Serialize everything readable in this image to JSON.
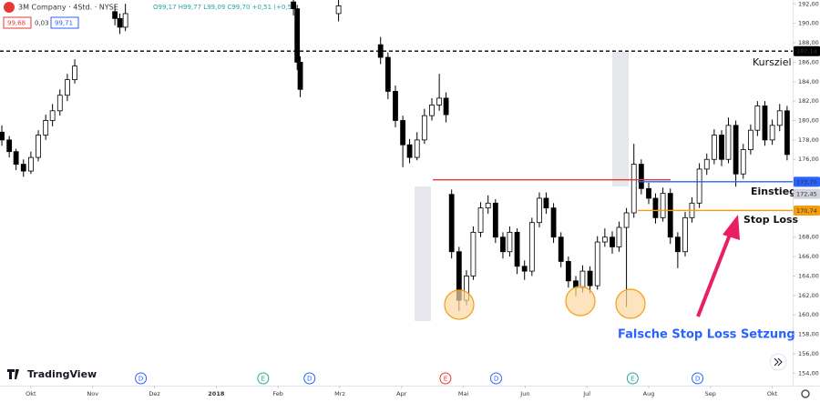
{
  "header": {
    "symbol": "3M Company · 4Std. · NYSE",
    "ohlc": "O99,17 H99,77 L99,09 C99,70 +0,51 (+0,5",
    "boxes": [
      "99,68",
      "0,03",
      "99,71"
    ]
  },
  "chart_data": {
    "type": "candlestick",
    "xlim": [
      -0.5,
      12.33
    ],
    "xticks": [
      {
        "value": 0,
        "label": "Okt"
      },
      {
        "value": 1,
        "label": "Nov"
      },
      {
        "value": 2,
        "label": "Dez"
      },
      {
        "value": 3,
        "label": "2018"
      },
      {
        "value": 4,
        "label": "Feb"
      },
      {
        "value": 5,
        "label": "Mrz"
      },
      {
        "value": 6,
        "label": "Apr"
      },
      {
        "value": 7,
        "label": "Mai"
      },
      {
        "value": 8,
        "label": "Jun"
      },
      {
        "value": 9,
        "label": "Jul"
      },
      {
        "value": 10,
        "label": "Aug"
      },
      {
        "value": 11,
        "label": "Sep"
      },
      {
        "value": 12,
        "label": "Okt"
      }
    ],
    "ylim": [
      153,
      192.4
    ],
    "yticks": [
      {
        "value": 154,
        "label": "154,00"
      },
      {
        "value": 156,
        "label": "156,00"
      },
      {
        "value": 158,
        "label": "158,00"
      },
      {
        "value": 160,
        "label": "160,00"
      },
      {
        "value": 162,
        "label": "162,00"
      },
      {
        "value": 164,
        "label": "164,00"
      },
      {
        "value": 166,
        "label": "166,00"
      },
      {
        "value": 168,
        "label": "168,00"
      },
      {
        "value": 176,
        "label": "176,00"
      },
      {
        "value": 178,
        "label": "178,00"
      },
      {
        "value": 180,
        "label": "180,00"
      },
      {
        "value": 182,
        "label": "182,00"
      },
      {
        "value": 184,
        "label": "184,00"
      },
      {
        "value": 186,
        "label": "186,00"
      },
      {
        "value": 188,
        "label": "188,00"
      },
      {
        "value": 190,
        "label": "190,00"
      },
      {
        "value": 192,
        "label": "192,00"
      }
    ],
    "up_color": "#ffffff",
    "down_color": "#000000",
    "candles": [
      [
        -0.47,
        178.8,
        179.5,
        177.4,
        178.0
      ],
      [
        -0.35,
        178.0,
        178.4,
        176.2,
        176.8
      ],
      [
        -0.24,
        176.8,
        177.1,
        174.9,
        175.5
      ],
      [
        -0.12,
        175.5,
        176.0,
        174.2,
        174.8
      ],
      [
        0,
        174.8,
        176.8,
        174.5,
        176.2
      ],
      [
        0.12,
        176.2,
        179.0,
        175.8,
        178.5
      ],
      [
        0.24,
        178.5,
        180.6,
        178.0,
        180.0
      ],
      [
        0.35,
        180.0,
        181.7,
        179.4,
        181.0
      ],
      [
        0.47,
        181.0,
        183.2,
        180.5,
        182.6
      ],
      [
        0.59,
        182.6,
        184.8,
        182.0,
        184.2
      ],
      [
        0.71,
        184.2,
        186.3,
        183.8,
        185.6
      ],
      [
        1.36,
        191.2,
        191.9,
        189.8,
        190.5
      ],
      [
        1.44,
        190.5,
        191.0,
        188.9,
        189.6
      ],
      [
        1.53,
        189.6,
        192.0,
        189.2,
        191.0
      ],
      [
        4.25,
        192.2,
        192.4,
        190.8,
        191.5
      ],
      [
        4.31,
        191.5,
        191.9,
        185.2,
        186.0
      ],
      [
        4.36,
        186.0,
        186.6,
        182.4,
        183.2
      ],
      [
        4.98,
        191.0,
        192.4,
        190.2,
        191.8
      ],
      [
        5.66,
        187.8,
        188.6,
        185.8,
        186.5
      ],
      [
        5.78,
        186.5,
        187.0,
        182.2,
        183.0
      ],
      [
        5.9,
        183.0,
        183.6,
        179.3,
        180.0
      ],
      [
        6.02,
        180.0,
        180.5,
        175.2,
        177.5
      ],
      [
        6.13,
        177.5,
        178.1,
        175.6,
        176.2
      ],
      [
        6.25,
        176.2,
        178.8,
        175.9,
        178.0
      ],
      [
        6.37,
        178.0,
        181.2,
        177.6,
        180.5
      ],
      [
        6.49,
        180.5,
        182.3,
        180.0,
        181.6
      ],
      [
        6.61,
        181.6,
        184.8,
        181.0,
        182.3
      ],
      [
        6.72,
        182.3,
        182.9,
        179.8,
        180.6
      ],
      [
        6.81,
        172.4,
        172.9,
        165.8,
        166.5
      ],
      [
        6.93,
        166.5,
        167.0,
        160.4,
        161.5
      ],
      [
        7.05,
        161.5,
        164.6,
        161.0,
        164.0
      ],
      [
        7.16,
        164.0,
        169.1,
        163.6,
        168.5
      ],
      [
        7.28,
        168.5,
        171.6,
        168.0,
        171.0
      ],
      [
        7.4,
        171.0,
        172.3,
        170.4,
        171.5
      ],
      [
        7.52,
        171.5,
        171.9,
        167.4,
        168.0
      ],
      [
        7.64,
        168.0,
        168.5,
        165.8,
        166.5
      ],
      [
        7.75,
        166.5,
        169.1,
        166.0,
        168.5
      ],
      [
        7.87,
        168.5,
        168.9,
        164.2,
        165.0
      ],
      [
        7.99,
        165.0,
        165.6,
        163.6,
        164.5
      ],
      [
        8.11,
        164.5,
        170.0,
        164.0,
        169.5
      ],
      [
        8.23,
        169.5,
        172.6,
        169.0,
        172.0
      ],
      [
        8.34,
        172.0,
        172.6,
        170.4,
        171.0
      ],
      [
        8.46,
        171.0,
        171.5,
        167.4,
        168.0
      ],
      [
        8.58,
        168.0,
        168.5,
        164.9,
        165.5
      ],
      [
        8.7,
        165.5,
        166.0,
        162.8,
        163.5
      ],
      [
        8.82,
        163.5,
        164.0,
        161.9,
        162.8
      ],
      [
        8.93,
        162.8,
        165.1,
        162.3,
        164.5
      ],
      [
        9.05,
        164.5,
        165.0,
        162.2,
        163.0
      ],
      [
        9.17,
        163.0,
        168.1,
        162.6,
        167.5
      ],
      [
        9.29,
        167.5,
        168.9,
        167.0,
        168.0
      ],
      [
        9.41,
        168.0,
        168.6,
        166.3,
        167.0
      ],
      [
        9.52,
        167.0,
        169.6,
        166.5,
        169.0
      ],
      [
        9.64,
        169.0,
        171.0,
        160.8,
        170.5
      ],
      [
        9.76,
        170.5,
        177.6,
        170.0,
        175.5
      ],
      [
        9.88,
        175.5,
        176.0,
        172.4,
        173.0
      ],
      [
        10.0,
        173.0,
        173.6,
        171.4,
        172.0
      ],
      [
        10.11,
        172.0,
        172.5,
        169.4,
        170.0
      ],
      [
        10.23,
        170.0,
        173.1,
        169.6,
        172.5
      ],
      [
        10.35,
        172.5,
        173.0,
        167.3,
        168.0
      ],
      [
        10.47,
        168.0,
        168.5,
        164.8,
        166.5
      ],
      [
        10.59,
        166.5,
        170.6,
        166.0,
        170.0
      ],
      [
        10.7,
        170.0,
        172.1,
        169.5,
        171.5
      ],
      [
        10.82,
        171.5,
        175.6,
        171.0,
        175.0
      ],
      [
        10.94,
        175.0,
        176.6,
        174.4,
        176.0
      ],
      [
        11.06,
        176.0,
        179.1,
        175.5,
        178.5
      ],
      [
        11.18,
        178.5,
        179.0,
        175.3,
        176.0
      ],
      [
        11.29,
        176.0,
        180.3,
        175.6,
        179.5
      ],
      [
        11.41,
        179.5,
        180.0,
        173.2,
        174.5
      ],
      [
        11.53,
        174.5,
        177.6,
        174.0,
        177.0
      ],
      [
        11.65,
        177.0,
        179.6,
        176.5,
        179.0
      ],
      [
        11.76,
        179.0,
        182.0,
        178.4,
        181.5
      ],
      [
        11.88,
        181.5,
        182.0,
        177.4,
        178.0
      ],
      [
        12.0,
        178.0,
        180.1,
        177.5,
        179.5
      ],
      [
        12.12,
        179.5,
        181.7,
        178.9,
        181.0
      ],
      [
        12.24,
        181.0,
        181.5,
        175.9,
        176.5
      ]
    ],
    "levels": [
      {
        "value": 187.14,
        "label": "187,14",
        "color": "#000000"
      },
      {
        "value": 173.9,
        "color": "#e53935"
      },
      {
        "value": 173.7,
        "label": "173,70",
        "color": "#2962ff"
      },
      {
        "value": 172.45,
        "label": "172,45",
        "color": "#d1d4dc"
      },
      {
        "value": 170.74,
        "label": "170,74",
        "color": "#f59d0c"
      }
    ],
    "annotations": [
      "Kursziel",
      "Einstieg",
      "Stop Loss",
      "Falsche Stop Loss Setzung"
    ],
    "events": [
      {
        "label": "D",
        "x": 1.78,
        "color": "#2962ff"
      },
      {
        "label": "E",
        "x": 3.76,
        "color": "#26a69a"
      },
      {
        "label": "D",
        "x": 4.51,
        "color": "#2962ff"
      },
      {
        "label": "E",
        "x": 6.71,
        "color": "#e53935"
      },
      {
        "label": "D",
        "x": 7.53,
        "color": "#2962ff"
      },
      {
        "label": "E",
        "x": 9.74,
        "color": "#26a69a"
      },
      {
        "label": "D",
        "x": 10.79,
        "color": "#2962ff"
      }
    ],
    "brand": "TradingView"
  }
}
